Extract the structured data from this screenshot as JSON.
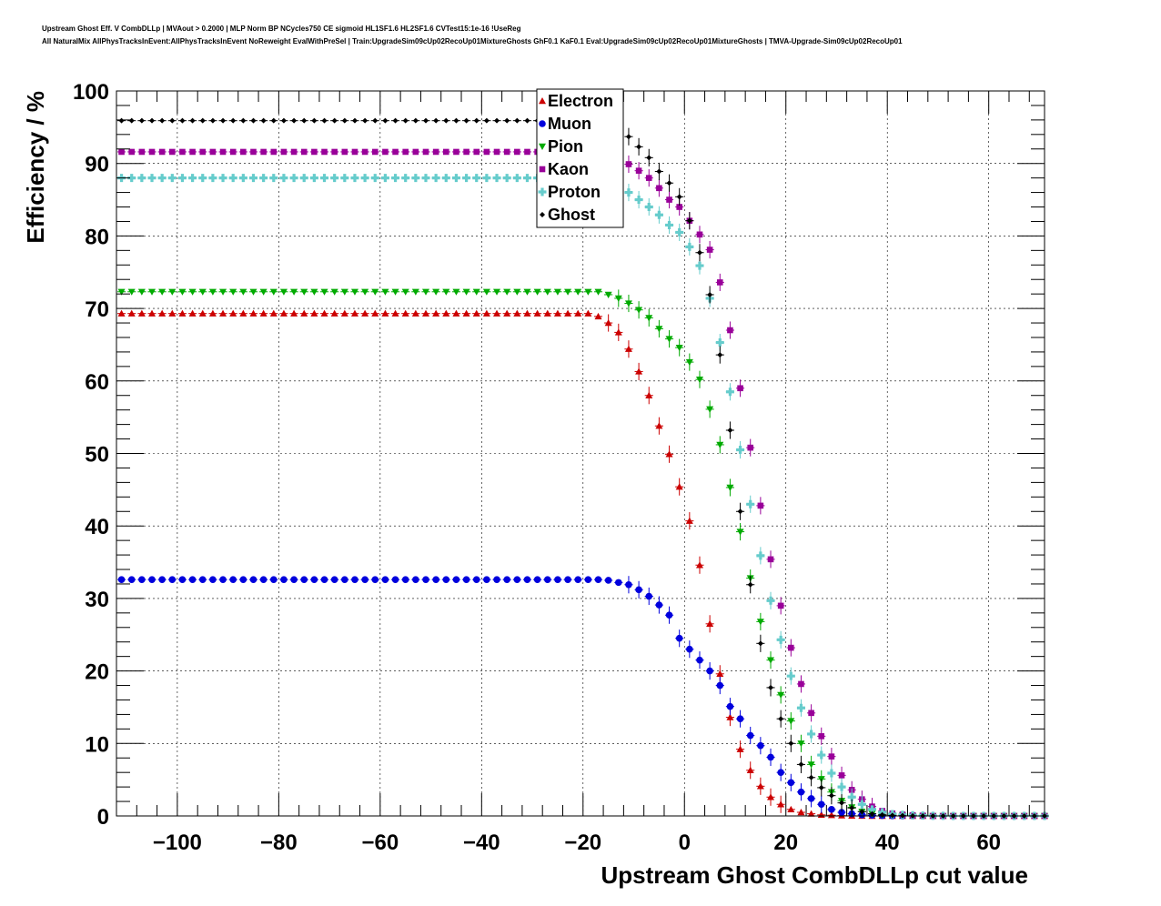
{
  "header": {
    "line1": "Upstream Ghost Eff. V CombDLLp | MVAout > 0.2000 | MLP Norm BP NCycles750 CE sigmoid HL1SF1.6 HL2SF1.6 CVTest15:1e-16 !UseReg",
    "line2": "All NaturalMix AllPhysTracksInEvent:AllPhysTracksInEvent NoReweight EvalWithPreSel | Train:UpgradeSim09cUp02RecoUp01MixtureGhosts GhF0.1 KaF0.1 Eval:UpgradeSim09cUp02RecoUp01MixtureGhosts | TMVA-Upgrade-Sim09cUp02RecoUp01"
  },
  "chart_data": {
    "type": "scatter",
    "xlabel": "Upstream Ghost CombDLLp cut value",
    "ylabel": "Efficiency / %",
    "xlim": [
      -112,
      71
    ],
    "ylim": [
      0,
      100
    ],
    "x_ticks": [
      -100,
      -80,
      -60,
      -40,
      -20,
      0,
      20,
      40,
      60
    ],
    "x_tick_labels": [
      "−100",
      "−80",
      "−60",
      "−40",
      "−20",
      "0",
      "20",
      "40",
      "60"
    ],
    "y_ticks": [
      0,
      10,
      20,
      30,
      40,
      50,
      60,
      70,
      80,
      90,
      100
    ],
    "y_tick_labels": [
      "0",
      "10",
      "20",
      "30",
      "40",
      "50",
      "60",
      "70",
      "80",
      "90",
      "100"
    ],
    "grid": true,
    "legend_position": "top-center",
    "x_start": -111,
    "x_step": 2,
    "series": [
      {
        "name": "Electron",
        "color": "#cc0000",
        "marker": "triangle-up",
        "values": [
          69.3,
          69.3,
          69.3,
          69.3,
          69.3,
          69.3,
          69.3,
          69.3,
          69.3,
          69.3,
          69.3,
          69.3,
          69.3,
          69.3,
          69.3,
          69.3,
          69.3,
          69.3,
          69.3,
          69.3,
          69.3,
          69.3,
          69.3,
          69.3,
          69.3,
          69.3,
          69.3,
          69.3,
          69.3,
          69.3,
          69.3,
          69.3,
          69.3,
          69.3,
          69.3,
          69.3,
          69.3,
          69.3,
          69.3,
          69.3,
          69.3,
          69.3,
          69.3,
          69.3,
          69.3,
          69.3,
          69.3,
          68.9,
          68.0,
          66.7,
          64.4,
          61.3,
          58.0,
          53.8,
          49.9,
          45.4,
          40.7,
          34.6,
          26.5,
          19.6,
          13.6,
          9.2,
          6.3,
          4.1,
          2.6,
          1.6,
          0.9,
          0.5,
          0.3,
          0.15,
          0.1,
          0.05,
          0.02,
          0.01,
          0,
          0,
          0,
          0,
          0,
          0,
          0,
          0,
          0,
          0,
          0,
          0,
          0,
          0,
          0,
          0,
          0,
          0
        ]
      },
      {
        "name": "Muon",
        "color": "#0000dd",
        "marker": "circle",
        "values": [
          32.6,
          32.6,
          32.6,
          32.6,
          32.6,
          32.6,
          32.6,
          32.6,
          32.6,
          32.6,
          32.6,
          32.6,
          32.6,
          32.6,
          32.6,
          32.6,
          32.6,
          32.6,
          32.6,
          32.6,
          32.6,
          32.6,
          32.6,
          32.6,
          32.6,
          32.6,
          32.6,
          32.6,
          32.6,
          32.6,
          32.6,
          32.6,
          32.6,
          32.6,
          32.6,
          32.6,
          32.6,
          32.6,
          32.6,
          32.6,
          32.6,
          32.6,
          32.6,
          32.6,
          32.6,
          32.6,
          32.6,
          32.6,
          32.5,
          32.2,
          31.9,
          31.2,
          30.3,
          29.1,
          27.7,
          24.5,
          23.0,
          21.5,
          20.0,
          18.0,
          15.1,
          13.4,
          11.1,
          9.7,
          8.1,
          6.0,
          4.6,
          3.3,
          2.4,
          1.6,
          0.9,
          0.5,
          0.3,
          0.15,
          0.1,
          0.05,
          0.02,
          0.01,
          0,
          0,
          0,
          0,
          0,
          0,
          0,
          0,
          0,
          0,
          0,
          0,
          0,
          0
        ]
      },
      {
        "name": "Pion",
        "color": "#00aa00",
        "marker": "triangle-down",
        "values": [
          72.3,
          72.3,
          72.3,
          72.3,
          72.3,
          72.3,
          72.3,
          72.3,
          72.3,
          72.3,
          72.3,
          72.3,
          72.3,
          72.3,
          72.3,
          72.3,
          72.3,
          72.3,
          72.3,
          72.3,
          72.3,
          72.3,
          72.3,
          72.3,
          72.3,
          72.3,
          72.3,
          72.3,
          72.3,
          72.3,
          72.3,
          72.3,
          72.3,
          72.3,
          72.3,
          72.3,
          72.3,
          72.3,
          72.3,
          72.3,
          72.3,
          72.3,
          72.3,
          72.3,
          72.3,
          72.3,
          72.3,
          72.3,
          71.9,
          71.4,
          70.7,
          69.8,
          68.7,
          67.2,
          65.8,
          64.6,
          62.6,
          60.2,
          56.1,
          51.2,
          45.3,
          39.2,
          32.8,
          26.8,
          21.5,
          16.7,
          13.1,
          10.0,
          7.1,
          5.1,
          3.3,
          2.1,
          1.2,
          0.6,
          0.3,
          0.15,
          0.1,
          0.05,
          0,
          0,
          0,
          0,
          0,
          0,
          0,
          0,
          0,
          0,
          0,
          0,
          0,
          0
        ]
      },
      {
        "name": "Kaon",
        "color": "#990099",
        "marker": "square",
        "values": [
          91.6,
          91.6,
          91.6,
          91.6,
          91.6,
          91.6,
          91.6,
          91.6,
          91.6,
          91.6,
          91.6,
          91.6,
          91.6,
          91.6,
          91.6,
          91.6,
          91.6,
          91.6,
          91.6,
          91.6,
          91.6,
          91.6,
          91.6,
          91.6,
          91.6,
          91.6,
          91.6,
          91.6,
          91.6,
          91.6,
          91.6,
          91.6,
          91.6,
          91.6,
          91.6,
          91.6,
          91.6,
          91.6,
          91.6,
          91.6,
          91.6,
          91.6,
          91.6,
          91.6,
          91.6,
          91.6,
          91.6,
          91.6,
          91.3,
          90.7,
          89.9,
          89.0,
          88.0,
          86.6,
          85.0,
          84.0,
          82.1,
          80.2,
          78.1,
          73.6,
          67.0,
          59.0,
          50.8,
          42.8,
          35.4,
          29.0,
          23.2,
          18.2,
          14.2,
          11.0,
          8.2,
          5.6,
          3.6,
          2.3,
          1.3,
          0.7,
          0.35,
          0.2,
          0.1,
          0.05,
          0,
          0,
          0,
          0,
          0,
          0,
          0,
          0,
          0,
          0,
          0,
          0
        ]
      },
      {
        "name": "Proton",
        "color": "#66cccc",
        "marker": "cross",
        "values": [
          88.0,
          88.0,
          88.0,
          88.0,
          88.0,
          88.0,
          88.0,
          88.0,
          88.0,
          88.0,
          88.0,
          88.0,
          88.0,
          88.0,
          88.0,
          88.0,
          88.0,
          88.0,
          88.0,
          88.0,
          88.0,
          88.0,
          88.0,
          88.0,
          88.0,
          88.0,
          88.0,
          88.0,
          88.0,
          88.0,
          88.0,
          88.0,
          88.0,
          88.0,
          88.0,
          88.0,
          88.0,
          88.0,
          88.0,
          88.0,
          88.0,
          88.0,
          88.0,
          88.0,
          88.0,
          88.0,
          88.0,
          88.0,
          87.6,
          86.9,
          86.0,
          85.0,
          84.0,
          82.9,
          81.5,
          80.5,
          78.5,
          75.9,
          71.4,
          65.3,
          58.5,
          50.5,
          43.0,
          35.9,
          29.7,
          24.3,
          19.3,
          14.9,
          11.3,
          8.4,
          5.9,
          4.0,
          2.6,
          1.6,
          0.9,
          0.5,
          0.25,
          0.15,
          0.1,
          0.05,
          0.02,
          0.01,
          0,
          0,
          0,
          0,
          0,
          0,
          0,
          0,
          0,
          0
        ]
      },
      {
        "name": "Ghost",
        "color": "#000000",
        "marker": "diamond",
        "values": [
          95.9,
          95.9,
          95.9,
          95.9,
          95.9,
          95.9,
          95.9,
          95.9,
          95.9,
          95.9,
          95.9,
          95.9,
          95.9,
          95.9,
          95.9,
          95.9,
          95.9,
          95.9,
          95.9,
          95.9,
          95.9,
          95.9,
          95.9,
          95.9,
          95.9,
          95.9,
          95.9,
          95.9,
          95.9,
          95.9,
          95.9,
          95.9,
          95.9,
          95.9,
          95.9,
          95.9,
          95.9,
          95.9,
          95.9,
          95.9,
          95.9,
          95.9,
          95.9,
          95.9,
          95.9,
          95.9,
          95.9,
          95.9,
          95.3,
          94.5,
          93.7,
          92.3,
          90.8,
          88.9,
          87.3,
          85.4,
          82.1,
          77.7,
          71.9,
          63.6,
          53.2,
          42.0,
          31.9,
          23.8,
          17.7,
          13.4,
          10.0,
          7.1,
          5.3,
          3.9,
          2.8,
          1.8,
          1.1,
          0.6,
          0.3,
          0.15,
          0.08,
          0.04,
          0.02,
          0.01,
          0,
          0,
          0,
          0,
          0,
          0,
          0,
          0,
          0,
          0,
          0,
          0
        ]
      }
    ]
  }
}
